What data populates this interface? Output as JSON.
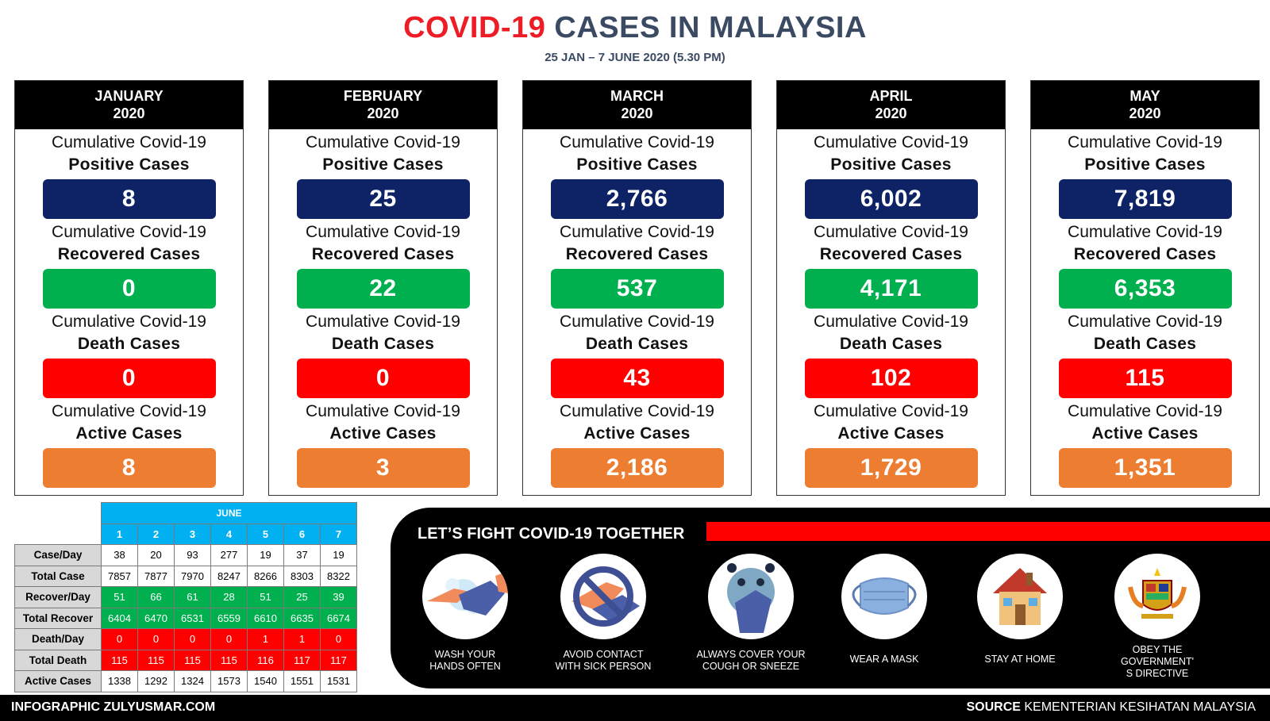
{
  "title": {
    "part1": "COVID-19",
    "part2": "CASES IN MALAYSIA"
  },
  "subtitle": "25 JAN – 7 JUNE 2020 (5.30 PM)",
  "labels": {
    "cumulative": "Cumulative Covid-19",
    "positive": "Positive Cases",
    "recovered": "Recovered Cases",
    "death": "Death Cases",
    "active": "Active Cases"
  },
  "months": [
    {
      "name": "JANUARY",
      "year": "2020",
      "positive": "8",
      "recovered": "0",
      "death": "0",
      "active": "8"
    },
    {
      "name": "FEBRUARY",
      "year": "2020",
      "positive": "25",
      "recovered": "22",
      "death": "0",
      "active": "3"
    },
    {
      "name": "MARCH",
      "year": "2020",
      "positive": "2,766",
      "recovered": "537",
      "death": "43",
      "active": "2,186"
    },
    {
      "name": "APRIL",
      "year": "2020",
      "positive": "6,002",
      "recovered": "4,171",
      "death": "102",
      "active": "1,729"
    },
    {
      "name": "MAY",
      "year": "2020",
      "positive": "7,819",
      "recovered": "6,353",
      "death": "115",
      "active": "1,351"
    }
  ],
  "june": {
    "header": "JUNE",
    "days": [
      "1",
      "2",
      "3",
      "4",
      "5",
      "6",
      "7"
    ],
    "rows": [
      {
        "label": "Case/Day",
        "values": [
          "38",
          "20",
          "93",
          "277",
          "19",
          "37",
          "19"
        ]
      },
      {
        "label": "Total Case",
        "values": [
          "7857",
          "7877",
          "7970",
          "8247",
          "8266",
          "8303",
          "8322"
        ]
      },
      {
        "label": "Recover/Day",
        "values": [
          "51",
          "66",
          "61",
          "28",
          "51",
          "25",
          "39"
        ]
      },
      {
        "label": "Total Recover",
        "values": [
          "6404",
          "6470",
          "6531",
          "6559",
          "6610",
          "6635",
          "6674"
        ]
      },
      {
        "label": "Death/Day",
        "values": [
          "0",
          "0",
          "0",
          "0",
          "1",
          "1",
          "0"
        ]
      },
      {
        "label": "Total Death",
        "values": [
          "115",
          "115",
          "115",
          "115",
          "116",
          "117",
          "117"
        ]
      },
      {
        "label": "Active Cases",
        "values": [
          "1338",
          "1292",
          "1324",
          "1573",
          "1540",
          "1551",
          "1531"
        ]
      }
    ]
  },
  "fight": {
    "title": "LET’S FIGHT COVID-19 TOGETHER",
    "tips": [
      {
        "icon": "wash-hands-icon",
        "line1": "WASH YOUR",
        "line2": "HANDS OFTEN",
        "line3": ""
      },
      {
        "icon": "avoid-contact-icon",
        "line1": "AVOID CONTACT",
        "line2": "WITH SICK PERSON",
        "line3": ""
      },
      {
        "icon": "cover-cough-icon",
        "line1": "ALWAYS COVER YOUR",
        "line2": "COUGH OR SNEEZE",
        "line3": ""
      },
      {
        "icon": "mask-icon",
        "line1": "WEAR A MASK",
        "line2": "",
        "line3": ""
      },
      {
        "icon": "house-icon",
        "line1": "STAY AT HOME",
        "line2": "",
        "line3": ""
      },
      {
        "icon": "coat-of-arms-icon",
        "line1": "OBEY THE",
        "line2": "GOVERNMENT'",
        "line3": "S DIRECTIVE"
      }
    ]
  },
  "footer": {
    "left": "INFOGRAPHIC ZULYUSMAR.COM",
    "source_label": "SOURCE",
    "source_text": "KEMENTERIAN KESIHATAN MALAYSIA"
  },
  "colors": {
    "positive": "#0d2366",
    "recovered": "#00b04f",
    "death": "#fe0000",
    "active": "#ed7d31",
    "june_header": "#00b0f0"
  }
}
